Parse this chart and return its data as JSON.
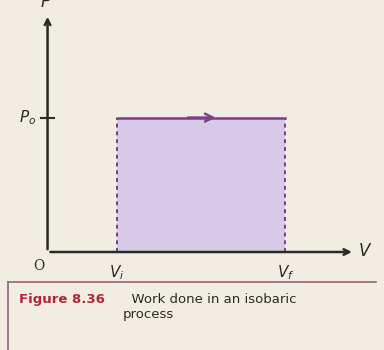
{
  "background_color": "#f2ede3",
  "caption_bg_color": "#ffffff",
  "fig_width": 3.84,
  "fig_height": 3.5,
  "dpi": 100,
  "Vi": 0.32,
  "Vf": 0.78,
  "P0": 0.58,
  "xlim": [
    0.0,
    1.05
  ],
  "ylim": [
    0.0,
    1.0
  ],
  "fill_color": "#d9c9e8",
  "dot_color": "#7b3f8c",
  "arrow_color": "#7b3f8c",
  "axis_color": "#2a2a2a",
  "label_color": "#2a2a2a",
  "ox": 0.13,
  "oy": 0.1,
  "x_axis_end": 0.97,
  "y_axis_end": 0.95,
  "caption_bold": "Figure 8.36",
  "caption_bold_color": "#b5253a",
  "caption_rest": "  Work done in an isobaric\nprocess",
  "caption_fontsize": 9.5,
  "border_color": "#9a6080"
}
